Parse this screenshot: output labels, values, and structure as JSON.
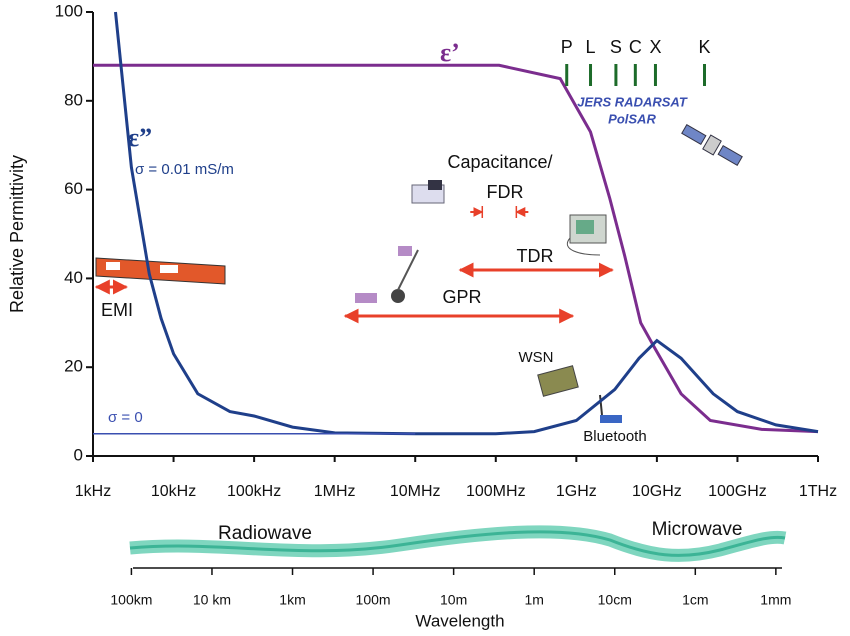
{
  "chart_data": {
    "type": "line",
    "y_label": "Relative Permittivity",
    "log_x": true,
    "xlim": [
      1000,
      1000000000000
    ],
    "xticks": [
      {
        "value": 1000,
        "label": "1kHz"
      },
      {
        "value": 10000,
        "label": "10kHz"
      },
      {
        "value": 100000,
        "label": "100kHz"
      },
      {
        "value": 1000000,
        "label": "1MHz"
      },
      {
        "value": 10000000,
        "label": "10MHz"
      },
      {
        "value": 100000000,
        "label": "100MHz"
      },
      {
        "value": 1000000000,
        "label": "1GHz"
      },
      {
        "value": 10000000000,
        "label": "10GHz"
      },
      {
        "value": 100000000000,
        "label": "100GHz"
      },
      {
        "value": 1000000000000,
        "label": "1THz"
      }
    ],
    "ylim": [
      0,
      100
    ],
    "yticks": [
      0,
      20,
      40,
      60,
      80,
      100
    ],
    "series": [
      {
        "name": "ε’",
        "color": "#7b2d8e",
        "x": [
          1000,
          110000000,
          630000000,
          1500000000,
          2600000000,
          4000000000,
          6300000000,
          9600000000,
          20000000000,
          46000000000,
          200000000000,
          1000000000000
        ],
        "values": [
          88,
          88,
          85,
          73,
          58,
          45,
          30,
          24,
          14,
          8,
          6,
          5.5
        ]
      },
      {
        "name": "ε”",
        "color": "#1f3f8a",
        "sigma_label": "σ = 0.01 mS/m",
        "x": [
          1900,
          3000,
          5000,
          7000,
          10000,
          20000,
          50000,
          100000,
          300000,
          1000000,
          10000000,
          100000000,
          300000000,
          1000000000,
          3000000000,
          6000000000,
          10000000000,
          20000000000,
          50000000000,
          100000000000,
          300000000000,
          1000000000000
        ],
        "values": [
          100,
          65,
          41,
          31,
          23,
          14,
          10,
          9,
          6.5,
          5.2,
          5,
          5,
          5.5,
          8,
          15,
          22,
          26,
          22,
          14,
          10,
          7,
          5.5
        ]
      },
      {
        "name": "σ = 0",
        "color": "#3a4fb0",
        "x": [
          1000,
          10000000
        ],
        "values": [
          5,
          5
        ]
      }
    ],
    "bands": [
      {
        "label": "P",
        "x": 760000000
      },
      {
        "label": "L",
        "x": 1500000000
      },
      {
        "label": "S",
        "x": 3100000000
      },
      {
        "label": "C",
        "x": 5400000000
      },
      {
        "label": "X",
        "x": 9600000000
      },
      {
        "label": "K",
        "x": 39000000000
      }
    ],
    "satellite_label": [
      "JERS RADARSAT",
      "PolSAR"
    ],
    "capacitance_label": "Capacitance/",
    "ranges": [
      {
        "label": "EMI",
        "from": 1100,
        "to": 2600
      },
      {
        "label": "FDR",
        "from": 68000000,
        "to": 180000000
      },
      {
        "label": "TDR",
        "from": 36000000,
        "to": 2800000000
      },
      {
        "label": "GPR",
        "from": 1350000,
        "to": 900000000
      }
    ],
    "device_labels": [
      "WSN",
      "Bluetooth"
    ],
    "spectrum_labels": [
      "Radiowave",
      "Microwave"
    ],
    "wavelength_axis": {
      "title": "Wavelength",
      "ticks": [
        {
          "value": 100000,
          "label": "100km"
        },
        {
          "value": 10000,
          "label": "10 km"
        },
        {
          "value": 1000,
          "label": "1km"
        },
        {
          "value": 100,
          "label": "100m"
        },
        {
          "value": 10,
          "label": "10m"
        },
        {
          "value": 1,
          "label": "1m"
        },
        {
          "value": 0.1,
          "label": "10cm"
        },
        {
          "value": 0.01,
          "label": "1cm"
        },
        {
          "value": 0.001,
          "label": "1mm"
        }
      ]
    }
  }
}
